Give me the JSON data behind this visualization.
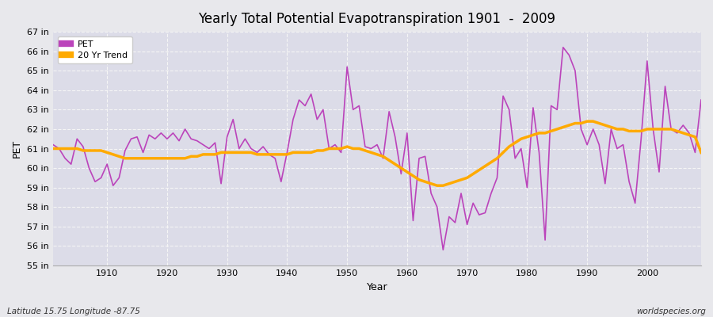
{
  "title": "Yearly Total Potential Evapotranspiration 1901  -  2009",
  "xlabel": "Year",
  "ylabel": "PET",
  "ylim": [
    55,
    67
  ],
  "yticks": [
    55,
    56,
    57,
    58,
    59,
    60,
    61,
    62,
    63,
    64,
    65,
    66,
    67
  ],
  "ytick_labels": [
    "55 in",
    "56 in",
    "57 in",
    "58 in",
    "59 in",
    "60 in",
    "61 in",
    "62 in",
    "63 in",
    "64 in",
    "65 in",
    "66 in",
    "67 in"
  ],
  "xlim": [
    1901,
    2009
  ],
  "xticks": [
    1910,
    1920,
    1930,
    1940,
    1950,
    1960,
    1970,
    1980,
    1990,
    2000
  ],
  "pet_color": "#bb44bb",
  "trend_color": "#ffaa00",
  "bg_color": "#e8e8ec",
  "plot_bg_color": "#dcdce8",
  "grid_color": "#f5f5f5",
  "footnote_left": "Latitude 15.75 Longitude -87.75",
  "footnote_right": "worldspecies.org",
  "years": [
    1901,
    1902,
    1903,
    1904,
    1905,
    1906,
    1907,
    1908,
    1909,
    1910,
    1911,
    1912,
    1913,
    1914,
    1915,
    1916,
    1917,
    1918,
    1919,
    1920,
    1921,
    1922,
    1923,
    1924,
    1925,
    1926,
    1927,
    1928,
    1929,
    1930,
    1931,
    1932,
    1933,
    1934,
    1935,
    1936,
    1937,
    1938,
    1939,
    1940,
    1941,
    1942,
    1943,
    1944,
    1945,
    1946,
    1947,
    1948,
    1949,
    1950,
    1951,
    1952,
    1953,
    1954,
    1955,
    1956,
    1957,
    1958,
    1959,
    1960,
    1961,
    1962,
    1963,
    1964,
    1965,
    1966,
    1967,
    1968,
    1969,
    1970,
    1971,
    1972,
    1973,
    1974,
    1975,
    1976,
    1977,
    1978,
    1979,
    1980,
    1981,
    1982,
    1983,
    1984,
    1985,
    1986,
    1987,
    1988,
    1989,
    1990,
    1991,
    1992,
    1993,
    1994,
    1995,
    1996,
    1997,
    1998,
    1999,
    2000,
    2001,
    2002,
    2003,
    2004,
    2005,
    2006,
    2007,
    2008,
    2009
  ],
  "pet_values": [
    61.2,
    61.0,
    60.5,
    60.2,
    61.5,
    61.1,
    60.0,
    59.3,
    59.5,
    60.2,
    59.1,
    59.5,
    60.9,
    61.5,
    61.6,
    60.8,
    61.7,
    61.5,
    61.8,
    61.5,
    61.8,
    61.4,
    62.0,
    61.5,
    61.4,
    61.2,
    61.0,
    61.3,
    59.2,
    61.6,
    62.5,
    61.0,
    61.5,
    61.0,
    60.8,
    61.1,
    60.7,
    60.5,
    59.3,
    60.8,
    62.5,
    63.5,
    63.2,
    63.8,
    62.5,
    63.0,
    61.0,
    61.2,
    60.8,
    65.2,
    63.0,
    63.2,
    61.1,
    61.0,
    61.2,
    60.5,
    62.9,
    61.6,
    59.7,
    61.8,
    57.3,
    60.5,
    60.6,
    58.7,
    58.0,
    55.8,
    57.5,
    57.2,
    58.7,
    57.1,
    58.2,
    57.6,
    57.7,
    58.7,
    59.5,
    63.7,
    63.0,
    60.5,
    61.0,
    59.0,
    63.1,
    60.8,
    56.3,
    63.2,
    63.0,
    66.2,
    65.8,
    65.0,
    62.0,
    61.2,
    62.0,
    61.2,
    59.2,
    62.0,
    61.0,
    61.2,
    59.3,
    58.2,
    61.5,
    65.5,
    62.0,
    59.8,
    64.2,
    62.0,
    61.8,
    62.2,
    61.8,
    60.8,
    63.5
  ],
  "trend_values": [
    61.0,
    61.0,
    61.0,
    61.0,
    61.0,
    60.9,
    60.9,
    60.9,
    60.9,
    60.8,
    60.7,
    60.6,
    60.5,
    60.5,
    60.5,
    60.5,
    60.5,
    60.5,
    60.5,
    60.5,
    60.5,
    60.5,
    60.5,
    60.6,
    60.6,
    60.7,
    60.7,
    60.7,
    60.8,
    60.8,
    60.8,
    60.8,
    60.8,
    60.8,
    60.7,
    60.7,
    60.7,
    60.7,
    60.7,
    60.7,
    60.8,
    60.8,
    60.8,
    60.8,
    60.9,
    60.9,
    61.0,
    61.0,
    61.0,
    61.1,
    61.0,
    61.0,
    60.9,
    60.8,
    60.7,
    60.6,
    60.4,
    60.2,
    60.0,
    59.8,
    59.6,
    59.4,
    59.3,
    59.2,
    59.1,
    59.1,
    59.2,
    59.3,
    59.4,
    59.5,
    59.7,
    59.9,
    60.1,
    60.3,
    60.5,
    60.8,
    61.1,
    61.3,
    61.5,
    61.6,
    61.7,
    61.8,
    61.8,
    61.9,
    62.0,
    62.1,
    62.2,
    62.3,
    62.3,
    62.4,
    62.4,
    62.3,
    62.2,
    62.1,
    62.0,
    62.0,
    61.9,
    61.9,
    61.9,
    62.0,
    62.0,
    62.0,
    62.0,
    62.0,
    61.9,
    61.8,
    61.7,
    61.6,
    60.8
  ]
}
